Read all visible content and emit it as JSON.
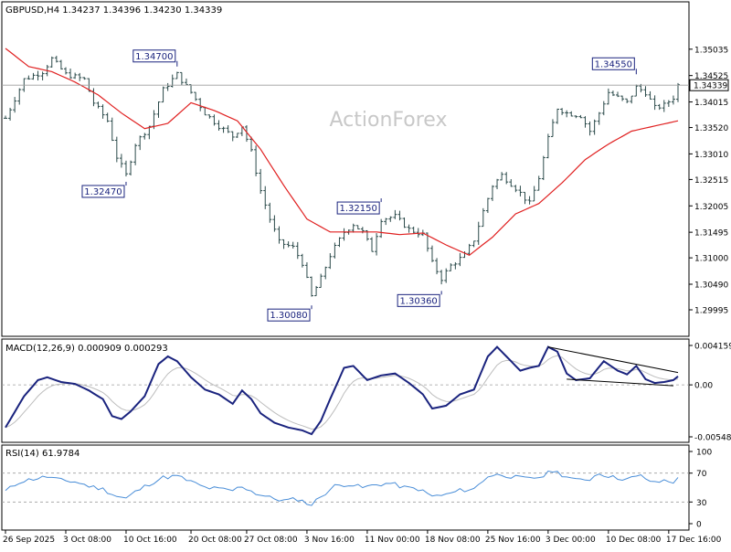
{
  "watermark": "ActionForex",
  "price_panel": {
    "header": "GBPUSD,H4  1.34237 1.34396 1.34230 1.34339",
    "current_price": 1.34339,
    "current_price_label": "1.34339",
    "y_range": [
      1.29995,
      1.3535
    ],
    "y_ticks": [
      "1.35035",
      "1.34525",
      "1.34015",
      "1.33520",
      "1.33010",
      "1.32515",
      "1.32005",
      "1.31495",
      "1.31000",
      "1.30490",
      "1.29995"
    ],
    "annotations": [
      {
        "label": "1.34700",
        "value": 1.347,
        "bar": 37
      },
      {
        "label": "1.32470",
        "value": 1.3247,
        "bar": 26
      },
      {
        "label": "1.32150",
        "value": 1.3215,
        "bar": 81
      },
      {
        "label": "1.30080",
        "value": 1.3008,
        "bar": 66
      },
      {
        "label": "1.30360",
        "value": 1.3036,
        "bar": 94
      },
      {
        "label": "1.34550",
        "value": 1.3455,
        "bar": 136
      }
    ],
    "ma_color": "#e02020",
    "bar_color": "#2b4a4a"
  },
  "macd_panel": {
    "header": "MACD(12,26,9) 0.000909 0.000293",
    "y_range": [
      -0.005485,
      0.004159
    ],
    "y_ticks": [
      "0.004159",
      "0.00",
      "-0.005485"
    ],
    "line_color": "#1a237e",
    "signal_color": "#bdbdbd"
  },
  "rsi_panel": {
    "header": "RSI(14) 61.9784",
    "y_range": [
      0,
      100
    ],
    "y_ticks": [
      "100",
      "70",
      "30",
      "0"
    ],
    "line_color": "#4a8ed8"
  },
  "x_labels": [
    {
      "label": "26 Sep 2025",
      "bar": 0
    },
    {
      "label": "3 Oct 08:00",
      "bar": 13
    },
    {
      "label": "10 Oct 16:00",
      "bar": 26
    },
    {
      "label": "20 Oct 08:00",
      "bar": 40
    },
    {
      "label": "27 Oct 08:00",
      "bar": 52
    },
    {
      "label": "3 Nov 16:00",
      "bar": 65
    },
    {
      "label": "11 Nov 00:00",
      "bar": 78
    },
    {
      "label": "18 Nov 08:00",
      "bar": 91
    },
    {
      "label": "25 Nov 16:00",
      "bar": 104
    },
    {
      "label": "3 Dec 00:00",
      "bar": 117
    },
    {
      "label": "10 Dec 08:00",
      "bar": 130
    },
    {
      "label": "17 Dec 16:00",
      "bar": 143
    }
  ],
  "chart_data": {
    "type": "line",
    "title": "GBPUSD,H4",
    "bar_count": 146,
    "close_key_points": [
      [
        0,
        1.337
      ],
      [
        4,
        1.3445
      ],
      [
        8,
        1.346
      ],
      [
        10,
        1.3485
      ],
      [
        13,
        1.3455
      ],
      [
        17,
        1.3445
      ],
      [
        19,
        1.34
      ],
      [
        22,
        1.3365
      ],
      [
        24,
        1.3295
      ],
      [
        26,
        1.326
      ],
      [
        28,
        1.332
      ],
      [
        31,
        1.3355
      ],
      [
        34,
        1.3425
      ],
      [
        37,
        1.3455
      ],
      [
        40,
        1.342
      ],
      [
        43,
        1.338
      ],
      [
        46,
        1.3355
      ],
      [
        49,
        1.3335
      ],
      [
        51,
        1.3355
      ],
      [
        53,
        1.3305
      ],
      [
        55,
        1.323
      ],
      [
        57,
        1.3175
      ],
      [
        59,
        1.313
      ],
      [
        62,
        1.312
      ],
      [
        64,
        1.309
      ],
      [
        66,
        1.3025
      ],
      [
        68,
        1.306
      ],
      [
        70,
        1.3105
      ],
      [
        73,
        1.315
      ],
      [
        75,
        1.3165
      ],
      [
        77,
        1.315
      ],
      [
        79,
        1.3115
      ],
      [
        81,
        1.3175
      ],
      [
        84,
        1.318
      ],
      [
        87,
        1.3155
      ],
      [
        90,
        1.3145
      ],
      [
        92,
        1.309
      ],
      [
        94,
        1.306
      ],
      [
        96,
        1.3085
      ],
      [
        99,
        1.3105
      ],
      [
        101,
        1.3135
      ],
      [
        103,
        1.319
      ],
      [
        105,
        1.324
      ],
      [
        107,
        1.326
      ],
      [
        110,
        1.3235
      ],
      [
        113,
        1.3205
      ],
      [
        115,
        1.3255
      ],
      [
        117,
        1.333
      ],
      [
        119,
        1.339
      ],
      [
        121,
        1.338
      ],
      [
        124,
        1.3375
      ],
      [
        126,
        1.3345
      ],
      [
        128,
        1.338
      ],
      [
        130,
        1.342
      ],
      [
        132,
        1.341
      ],
      [
        134,
        1.34
      ],
      [
        136,
        1.343
      ],
      [
        138,
        1.342
      ],
      [
        140,
        1.339
      ],
      [
        142,
        1.3395
      ],
      [
        144,
        1.341
      ],
      [
        145,
        1.3434
      ]
    ],
    "moving_average_points": [
      [
        0,
        1.3505
      ],
      [
        5,
        1.347
      ],
      [
        10,
        1.346
      ],
      [
        15,
        1.344
      ],
      [
        20,
        1.3415
      ],
      [
        25,
        1.338
      ],
      [
        30,
        1.335
      ],
      [
        35,
        1.336
      ],
      [
        40,
        1.34
      ],
      [
        45,
        1.3385
      ],
      [
        50,
        1.3365
      ],
      [
        55,
        1.331
      ],
      [
        60,
        1.324
      ],
      [
        65,
        1.3175
      ],
      [
        70,
        1.315
      ],
      [
        75,
        1.315
      ],
      [
        80,
        1.315
      ],
      [
        85,
        1.3145
      ],
      [
        90,
        1.3148
      ],
      [
        95,
        1.3125
      ],
      [
        100,
        1.3105
      ],
      [
        105,
        1.314
      ],
      [
        110,
        1.3185
      ],
      [
        115,
        1.3205
      ],
      [
        120,
        1.3245
      ],
      [
        125,
        1.329
      ],
      [
        130,
        1.332
      ],
      [
        135,
        1.3345
      ],
      [
        140,
        1.3355
      ],
      [
        145,
        1.3365
      ]
    ],
    "macd_points": [
      [
        0,
        -0.0045
      ],
      [
        4,
        -0.0012
      ],
      [
        7,
        0.0005
      ],
      [
        9,
        0.0008
      ],
      [
        12,
        0.0003
      ],
      [
        15,
        0.0001
      ],
      [
        18,
        -0.0006
      ],
      [
        21,
        -0.0015
      ],
      [
        23,
        -0.0033
      ],
      [
        25,
        -0.0036
      ],
      [
        27,
        -0.0028
      ],
      [
        30,
        -0.0012
      ],
      [
        33,
        0.0022
      ],
      [
        35,
        0.003
      ],
      [
        37,
        0.0025
      ],
      [
        40,
        0.0008
      ],
      [
        43,
        -0.0005
      ],
      [
        46,
        -0.001
      ],
      [
        49,
        -0.002
      ],
      [
        51,
        -0.0006
      ],
      [
        53,
        -0.0015
      ],
      [
        55,
        -0.003
      ],
      [
        58,
        -0.004
      ],
      [
        61,
        -0.0045
      ],
      [
        64,
        -0.0048
      ],
      [
        66,
        -0.0052
      ],
      [
        68,
        -0.0038
      ],
      [
        70,
        -0.0015
      ],
      [
        73,
        0.0018
      ],
      [
        75,
        0.002
      ],
      [
        78,
        0.0005
      ],
      [
        81,
        0.001
      ],
      [
        84,
        0.0012
      ],
      [
        87,
        0.0002
      ],
      [
        90,
        -0.001
      ],
      [
        92,
        -0.0025
      ],
      [
        95,
        -0.0022
      ],
      [
        98,
        -0.001
      ],
      [
        101,
        -0.0005
      ],
      [
        104,
        0.003
      ],
      [
        106,
        0.004
      ],
      [
        108,
        0.003
      ],
      [
        111,
        0.0015
      ],
      [
        113,
        0.0018
      ],
      [
        115,
        0.002
      ],
      [
        117,
        0.004
      ],
      [
        119,
        0.0035
      ],
      [
        121,
        0.0012
      ],
      [
        123,
        0.0005
      ],
      [
        126,
        0.0007
      ],
      [
        129,
        0.0025
      ],
      [
        132,
        0.0015
      ],
      [
        134,
        0.0011
      ],
      [
        136,
        0.002
      ],
      [
        138,
        0.0006
      ],
      [
        140,
        0.0002
      ],
      [
        142,
        0.0003
      ],
      [
        144,
        0.0005
      ],
      [
        145,
        0.0009
      ]
    ],
    "rsi_points": [
      [
        0,
        45
      ],
      [
        3,
        58
      ],
      [
        6,
        62
      ],
      [
        9,
        65
      ],
      [
        12,
        60
      ],
      [
        15,
        58
      ],
      [
        18,
        52
      ],
      [
        21,
        48
      ],
      [
        24,
        38
      ],
      [
        26,
        35
      ],
      [
        28,
        44
      ],
      [
        31,
        55
      ],
      [
        34,
        64
      ],
      [
        37,
        66
      ],
      [
        40,
        58
      ],
      [
        43,
        50
      ],
      [
        46,
        48
      ],
      [
        49,
        46
      ],
      [
        51,
        52
      ],
      [
        54,
        42
      ],
      [
        57,
        36
      ],
      [
        60,
        32
      ],
      [
        63,
        34
      ],
      [
        66,
        26
      ],
      [
        68,
        38
      ],
      [
        71,
        52
      ],
      [
        74,
        55
      ],
      [
        77,
        50
      ],
      [
        80,
        54
      ],
      [
        83,
        56
      ],
      [
        86,
        50
      ],
      [
        89,
        48
      ],
      [
        92,
        38
      ],
      [
        95,
        40
      ],
      [
        98,
        46
      ],
      [
        101,
        48
      ],
      [
        104,
        66
      ],
      [
        107,
        68
      ],
      [
        110,
        64
      ],
      [
        113,
        62
      ],
      [
        116,
        66
      ],
      [
        118,
        74
      ],
      [
        120,
        68
      ],
      [
        123,
        60
      ],
      [
        126,
        62
      ],
      [
        128,
        70
      ],
      [
        131,
        64
      ],
      [
        134,
        62
      ],
      [
        137,
        66
      ],
      [
        140,
        56
      ],
      [
        142,
        60
      ],
      [
        144,
        58
      ],
      [
        145,
        62
      ]
    ]
  }
}
